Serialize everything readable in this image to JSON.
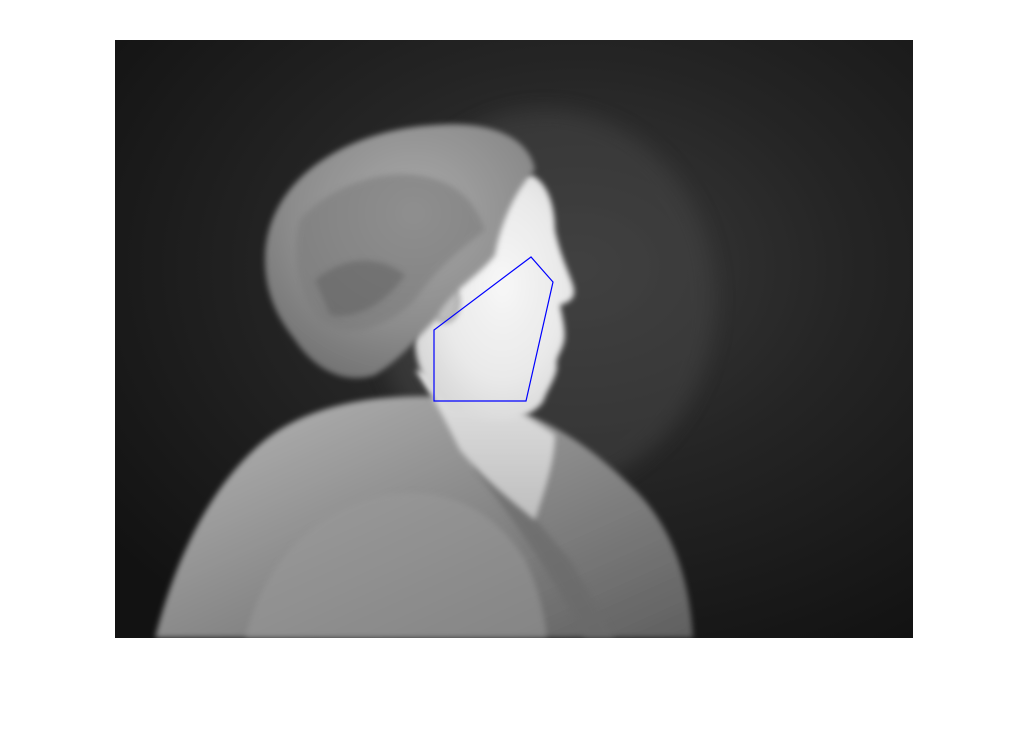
{
  "figure": {
    "background_color": "#ffffff"
  },
  "image": {
    "description_kind": "thermal-grayscale-profile",
    "palette": [
      "#141414",
      "#3a3a3a",
      "#8a8a8a",
      "#bdbdbd",
      "#e6e6e6",
      "#f7f7f7"
    ]
  },
  "overlay": {
    "shape": "polygon",
    "stroke_color": "#0000ff"
  }
}
